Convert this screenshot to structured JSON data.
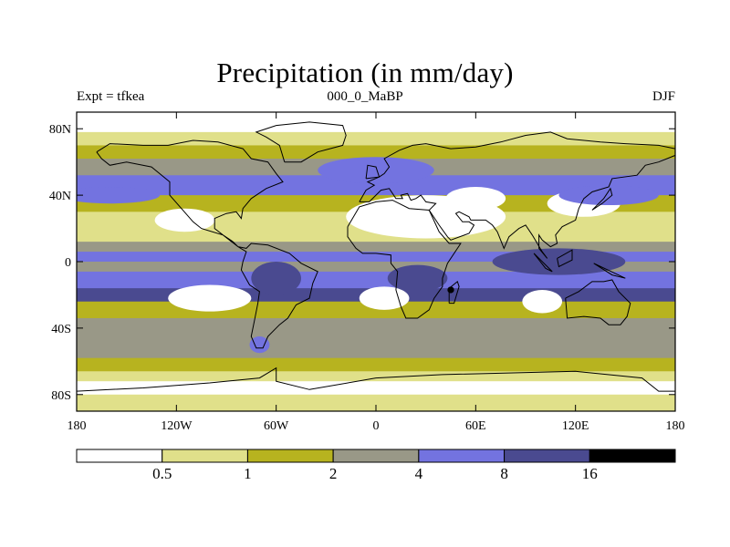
{
  "title": "Precipitation (in mm/day)",
  "subtitle_left": "Expt = tfkea",
  "subtitle_center": "000_0_MaBP",
  "subtitle_right": "DJF",
  "colors": {
    "level_0": "#ffffff",
    "level_1": "#e0e08a",
    "level_2": "#b7b31f",
    "level_3": "#999887",
    "level_4": "#7373e0",
    "level_5": "#4a4a90",
    "level_6": "#000000",
    "coast": "#000000"
  },
  "chart_data": {
    "type": "heatmap",
    "title": "Precipitation (in mm/day)",
    "x_ticks": [
      "180",
      "120W",
      "60W",
      "0",
      "60E",
      "120E",
      "180"
    ],
    "y_ticks": [
      "80N",
      "40N",
      "0",
      "40S",
      "80S"
    ],
    "xlim": [
      -180,
      180
    ],
    "ylim": [
      -90,
      90
    ],
    "colorbar": {
      "levels": [
        "0.5",
        "1",
        "2",
        "4",
        "8",
        "16"
      ],
      "colors": [
        "#ffffff",
        "#e0e08a",
        "#b7b31f",
        "#999887",
        "#7373e0",
        "#4a4a90",
        "#000000"
      ]
    },
    "zonal_bands_mm_per_day": [
      {
        "lat_from": 90,
        "lat_to": 78,
        "value": 0.3
      },
      {
        "lat_from": 78,
        "lat_to": 70,
        "value": 0.8
      },
      {
        "lat_from": 70,
        "lat_to": 62,
        "value": 1.5
      },
      {
        "lat_from": 62,
        "lat_to": 52,
        "value": 3.0
      },
      {
        "lat_from": 52,
        "lat_to": 40,
        "value": 5.0
      },
      {
        "lat_from": 40,
        "lat_to": 30,
        "value": 1.5
      },
      {
        "lat_from": 30,
        "lat_to": 20,
        "value": 0.7
      },
      {
        "lat_from": 20,
        "lat_to": 12,
        "value": 0.8
      },
      {
        "lat_from": 12,
        "lat_to": 6,
        "value": 3.0
      },
      {
        "lat_from": 6,
        "lat_to": 0,
        "value": 6.0
      },
      {
        "lat_from": 0,
        "lat_to": -6,
        "value": 3.0
      },
      {
        "lat_from": -6,
        "lat_to": -16,
        "value": 6.0
      },
      {
        "lat_from": -16,
        "lat_to": -24,
        "value": 9.0
      },
      {
        "lat_from": -24,
        "lat_to": -34,
        "value": 1.5
      },
      {
        "lat_from": -34,
        "lat_to": -58,
        "value": 3.0
      },
      {
        "lat_from": -58,
        "lat_to": -66,
        "value": 1.5
      },
      {
        "lat_from": -66,
        "lat_to": -72,
        "value": 0.8
      },
      {
        "lat_from": -72,
        "lat_to": -80,
        "value": 0.3
      },
      {
        "lat_from": -80,
        "lat_to": -90,
        "value": 0.8
      }
    ],
    "regional_features_mm_per_day": [
      {
        "lon": 30,
        "lat": 27,
        "lon_radius": 48,
        "lat_radius": 13,
        "value": 0.3
      },
      {
        "lon": 60,
        "lat": 38,
        "lon_radius": 18,
        "lat_radius": 7,
        "value": 0.3
      },
      {
        "lon": -115,
        "lat": 25,
        "lon_radius": 18,
        "lat_radius": 7,
        "value": 0.3
      },
      {
        "lon": -100,
        "lat": -22,
        "lon_radius": 25,
        "lat_radius": 8,
        "value": 0.3
      },
      {
        "lon": 5,
        "lat": -22,
        "lon_radius": 15,
        "lat_radius": 7,
        "value": 0.3
      },
      {
        "lon": 100,
        "lat": -24,
        "lon_radius": 12,
        "lat_radius": 7,
        "value": 0.3
      },
      {
        "lon": 125,
        "lat": 35,
        "lon_radius": 22,
        "lat_radius": 8,
        "value": 0.3
      },
      {
        "lon": 110,
        "lat": 0,
        "lon_radius": 40,
        "lat_radius": 8,
        "value": 12.0
      },
      {
        "lon": -60,
        "lat": -10,
        "lon_radius": 15,
        "lat_radius": 10,
        "value": 10.0
      },
      {
        "lon": 25,
        "lat": -10,
        "lon_radius": 18,
        "lat_radius": 8,
        "value": 8.0
      },
      {
        "lon": 45,
        "lat": -17,
        "lon_radius": 2,
        "lat_radius": 2,
        "value": 18.0
      },
      {
        "lon": 140,
        "lat": 40,
        "lon_radius": 30,
        "lat_radius": 6,
        "value": 6.0
      },
      {
        "lon": -160,
        "lat": 40,
        "lon_radius": 30,
        "lat_radius": 5,
        "value": 6.0
      },
      {
        "lon": 0,
        "lat": 55,
        "lon_radius": 35,
        "lat_radius": 8,
        "value": 5.0
      },
      {
        "lon": -70,
        "lat": -50,
        "lon_radius": 6,
        "lat_radius": 5,
        "value": 6.0
      }
    ]
  }
}
